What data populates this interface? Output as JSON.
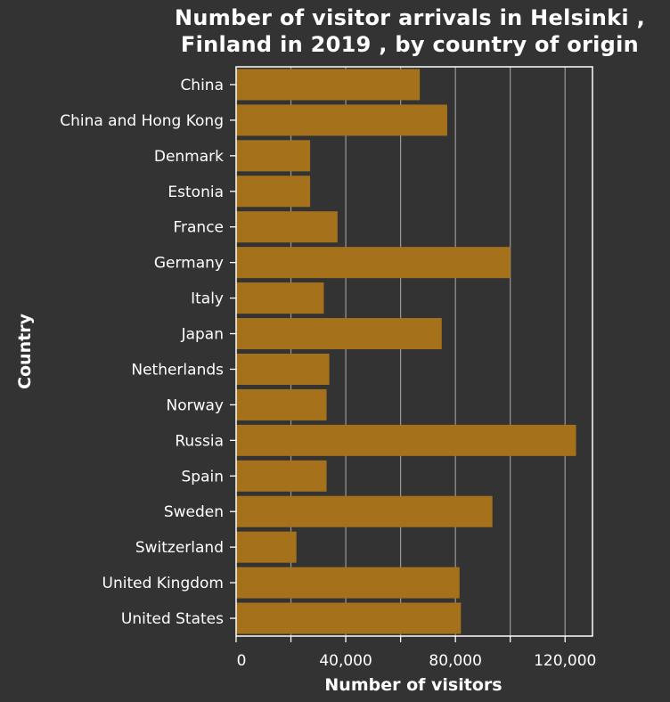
{
  "chart_data": {
    "type": "bar",
    "orientation": "horizontal",
    "title_line1": "Number of visitor arrivals in Helsinki ,",
    "title_line2": "Finland in 2019 , by country of origin",
    "xlabel": "Number of visitors",
    "ylabel": "Country",
    "xlim": [
      0,
      130000
    ],
    "xticks": [
      0,
      20000,
      40000,
      60000,
      80000,
      100000,
      120000
    ],
    "xtick_labels": [
      "0",
      "",
      "40,000",
      "",
      "80,000",
      "",
      "120,000"
    ],
    "grid": true,
    "categories": [
      "China",
      "China and Hong Kong",
      "Denmark",
      "Estonia",
      "France",
      "Germany",
      "Italy",
      "Japan",
      "Netherlands",
      "Norway",
      "Russia",
      "Spain",
      "Sweden",
      "Switzerland",
      "United Kingdom",
      "United States"
    ],
    "values": [
      67000,
      77000,
      27000,
      27000,
      37000,
      100000,
      32000,
      75000,
      34000,
      33000,
      124000,
      33000,
      93500,
      22000,
      81500,
      82000
    ],
    "bar_color": "#a5721b",
    "background_color": "#333333",
    "grid_color": "#9a9a9a"
  }
}
